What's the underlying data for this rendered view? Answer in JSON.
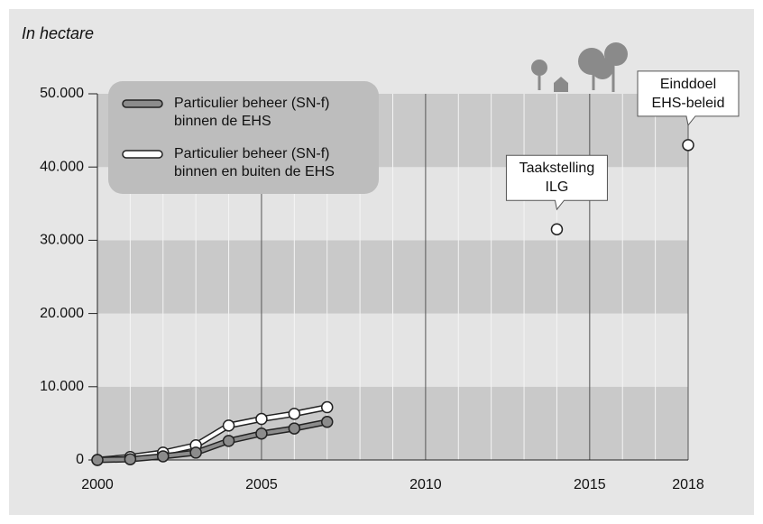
{
  "chart_data": {
    "type": "line",
    "ylabel": "In hectare",
    "x": [
      2000,
      2001,
      2002,
      2003,
      2004,
      2005,
      2006,
      2007
    ],
    "series": [
      {
        "name": "Particulier beheer (SN-f)\nbinnen de EHS",
        "color": "#8c8c8c",
        "values": [
          0,
          100,
          500,
          1000,
          2600,
          3600,
          4300,
          5200
        ]
      },
      {
        "name": "Particulier beheer (SN-f)\nbinnen en buiten de EHS",
        "color": "#ffffff",
        "values": [
          0,
          400,
          1000,
          2000,
          4700,
          5600,
          6300,
          7200
        ]
      }
    ],
    "annotations": [
      {
        "text": "Taakstelling\nILG",
        "x": 2014,
        "value": 31500
      },
      {
        "text": "Einddoel\nEHS-beleid",
        "x": 2018,
        "value": 43000
      }
    ],
    "xlim": [
      2000,
      2018
    ],
    "xticks": [
      2000,
      2005,
      2010,
      2015,
      2018
    ],
    "xgrid": [
      2001,
      2002,
      2003,
      2004,
      2006,
      2007,
      2008,
      2009,
      2011,
      2012,
      2013,
      2014,
      2016,
      2017
    ],
    "ylim": [
      0,
      50000
    ],
    "yticks": [
      0,
      {
        "value": 10000,
        "label": "10.000"
      },
      {
        "value": 20000,
        "label": "20.000"
      },
      {
        "value": 30000,
        "label": "30.000"
      },
      {
        "value": 40000,
        "label": "40.000"
      },
      {
        "value": 50000,
        "label": "50.000"
      }
    ],
    "bands": [
      "#c9c9c9",
      "#e4e4e4"
    ]
  }
}
